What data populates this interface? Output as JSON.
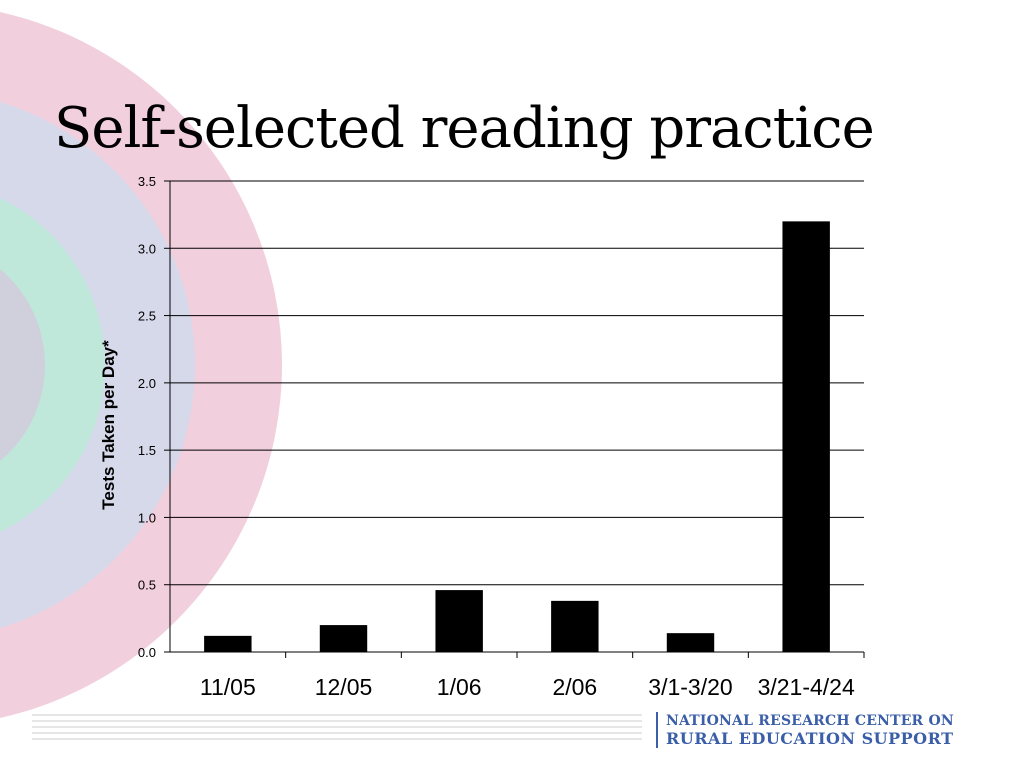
{
  "slide": {
    "title": "Self-selected reading practice",
    "org_line1": "NATIONAL RESEARCH CENTER ON",
    "org_line2": "RURAL EDUCATION SUPPORT"
  },
  "colors": {
    "bar": "#000000",
    "ring_outer": "#f2cfdc",
    "ring_mid": "#d6d9ea",
    "ring_inner": "#bfe8da",
    "ring_core": "#d0d0dc",
    "org_text": "#3a5ea8"
  },
  "chart_data": {
    "type": "bar",
    "title": "",
    "xlabel": "",
    "ylabel": "Tests Taken per Day*",
    "categories": [
      "11/05",
      "12/05",
      "1/06",
      "2/06",
      "3/1-3/20",
      "3/21-4/24"
    ],
    "values": [
      0.12,
      0.2,
      0.46,
      0.38,
      0.14,
      3.2
    ],
    "ylim": [
      0,
      3.5
    ],
    "yticks": [
      "0.0",
      "0.5",
      "1.0",
      "1.5",
      "2.0",
      "2.5",
      "3.0",
      "3.5"
    ],
    "grid": true,
    "legend": "none"
  }
}
